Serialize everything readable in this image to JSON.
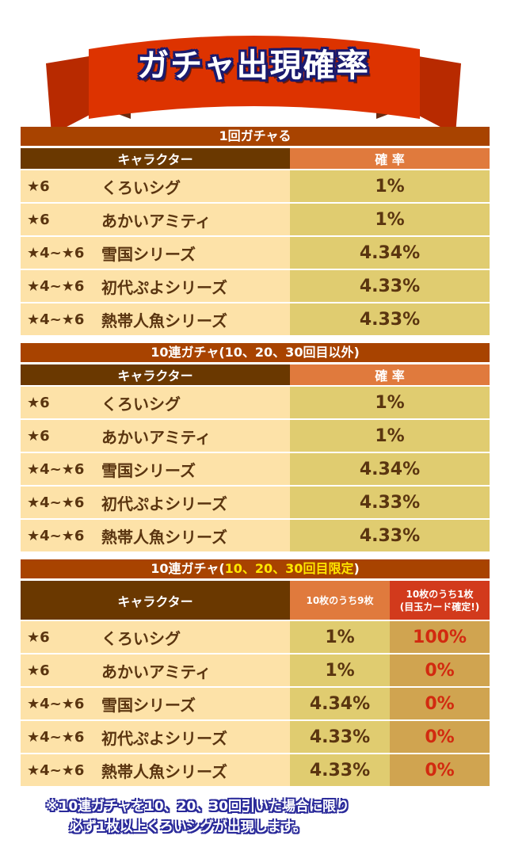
{
  "title": "ガチャ出現確率",
  "colors": {
    "ribbon": "#dd3300",
    "title_bar": "#a84300",
    "header_char": "#6a3800",
    "header_rate": "#e07a3d",
    "header_rate_red": "#d23a1c",
    "row_char": "#fde2a8",
    "row_rate": "#e0cc70",
    "row_rate2": "#d0a450",
    "red_text": "#d22a10"
  },
  "sections": [
    {
      "title": "1回ガチャる",
      "header_char": "キャラクター",
      "header_rate": "確 率",
      "rows": [
        {
          "star": "★6",
          "name": "くろいシグ",
          "rate": "1%"
        },
        {
          "star": "★6",
          "name": "あかいアミティ",
          "rate": "1%"
        },
        {
          "star": "★4~★6",
          "name": "雪国シリーズ",
          "rate": "4.34%"
        },
        {
          "star": "★4~★6",
          "name": "初代ぷよシリーズ",
          "rate": "4.33%"
        },
        {
          "star": "★4~★6",
          "name": "熱帯人魚シリーズ",
          "rate": "4.33%"
        }
      ]
    },
    {
      "title": "10連ガチャ(10、20、30回目以外)",
      "header_char": "キャラクター",
      "header_rate": "確 率",
      "rows": [
        {
          "star": "★6",
          "name": "くろいシグ",
          "rate": "1%"
        },
        {
          "star": "★6",
          "name": "あかいアミティ",
          "rate": "1%"
        },
        {
          "star": "★4~★6",
          "name": "雪国シリーズ",
          "rate": "4.34%"
        },
        {
          "star": "★4~★6",
          "name": "初代ぷよシリーズ",
          "rate": "4.33%"
        },
        {
          "star": "★4~★6",
          "name": "熱帯人魚シリーズ",
          "rate": "4.33%"
        }
      ]
    },
    {
      "title_prefix": "10連ガチャ(",
      "title_highlight": "10、20、30回目限定",
      "title_suffix": ")",
      "header_char": "キャラクター",
      "header_rate_9": "10枚のうち9枚",
      "header_rate_1_line1": "10枚のうち1枚",
      "header_rate_1_line2": "(目玉カード確定!)",
      "rows": [
        {
          "star": "★6",
          "name": "くろいシグ",
          "rate9": "1%",
          "rate1": "100%"
        },
        {
          "star": "★6",
          "name": "あかいアミティ",
          "rate9": "1%",
          "rate1": "0%"
        },
        {
          "star": "★4~★6",
          "name": "雪国シリーズ",
          "rate9": "4.34%",
          "rate1": "0%"
        },
        {
          "star": "★4~★6",
          "name": "初代ぷよシリーズ",
          "rate9": "4.33%",
          "rate1": "0%"
        },
        {
          "star": "★4~★6",
          "name": "熱帯人魚シリーズ",
          "rate9": "4.33%",
          "rate1": "0%"
        }
      ]
    }
  ],
  "note": {
    "line1": "※10連ガチャを10、20、30回引いた場合に限り",
    "line2": "必ず1枚以上くろいシグが出現します。"
  }
}
